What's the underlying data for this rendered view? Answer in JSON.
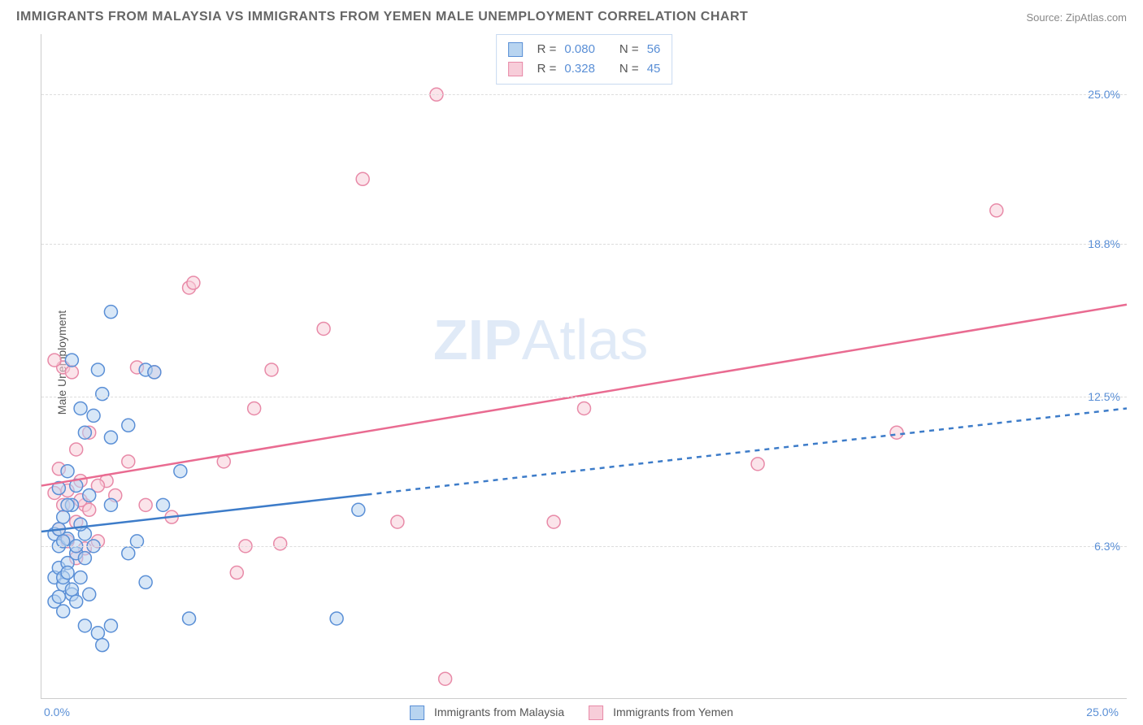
{
  "header": {
    "title": "IMMIGRANTS FROM MALAYSIA VS IMMIGRANTS FROM YEMEN MALE UNEMPLOYMENT CORRELATION CHART",
    "source": "Source: ZipAtlas.com"
  },
  "watermark": {
    "zip": "ZIP",
    "atlas": "Atlas"
  },
  "ylabel": "Male Unemployment",
  "axes": {
    "xlim": [
      0,
      25
    ],
    "ylim": [
      0,
      27.5
    ],
    "x_tick_left": "0.0%",
    "x_tick_right": "25.0%",
    "y_ticks": [
      {
        "v": 6.3,
        "label": "6.3%"
      },
      {
        "v": 12.5,
        "label": "12.5%"
      },
      {
        "v": 18.8,
        "label": "18.8%"
      },
      {
        "v": 25.0,
        "label": "25.0%"
      }
    ],
    "grid_color": "#dddddd"
  },
  "stats_legend": {
    "rows": [
      {
        "swatch_fill": "#b8d4f0",
        "swatch_border": "#5a8fd6",
        "r_label": "R =",
        "r_val": "0.080",
        "n_label": "N =",
        "n_val": "56"
      },
      {
        "swatch_fill": "#f7cdd9",
        "swatch_border": "#e88aa8",
        "r_label": "R =",
        "r_val": "0.328",
        "n_label": "N =",
        "n_val": "45"
      }
    ]
  },
  "series_legend": {
    "items": [
      {
        "label": "Immigrants from Malaysia",
        "fill": "#b8d4f0",
        "border": "#5a8fd6"
      },
      {
        "label": "Immigrants from Yemen",
        "fill": "#f7cdd9",
        "border": "#e88aa8"
      }
    ]
  },
  "series": {
    "malaysia": {
      "color_fill": "#b8d4f0",
      "color_stroke": "#5a8fd6",
      "marker_radius": 8,
      "trend": {
        "x1": 0,
        "y1": 6.9,
        "x2": 25,
        "y2": 12.0,
        "solid_until_x": 7.5,
        "stroke": "#3d7cc9",
        "width": 2.5
      },
      "points": [
        [
          0.3,
          5.0
        ],
        [
          0.4,
          5.4
        ],
        [
          0.5,
          4.7
        ],
        [
          0.6,
          5.6
        ],
        [
          0.7,
          4.3
        ],
        [
          0.8,
          6.0
        ],
        [
          0.9,
          5.0
        ],
        [
          1.0,
          5.8
        ],
        [
          0.4,
          6.3
        ],
        [
          0.6,
          6.6
        ],
        [
          0.8,
          6.3
        ],
        [
          1.0,
          6.8
        ],
        [
          1.2,
          6.3
        ],
        [
          0.5,
          7.5
        ],
        [
          0.7,
          8.0
        ],
        [
          0.9,
          7.2
        ],
        [
          1.1,
          8.4
        ],
        [
          0.4,
          8.7
        ],
        [
          0.6,
          9.4
        ],
        [
          1.6,
          8.0
        ],
        [
          0.3,
          4.0
        ],
        [
          0.5,
          3.6
        ],
        [
          1.0,
          3.0
        ],
        [
          1.3,
          2.7
        ],
        [
          1.6,
          3.0
        ],
        [
          1.4,
          2.2
        ],
        [
          2.0,
          6.0
        ],
        [
          2.2,
          6.5
        ],
        [
          2.4,
          4.8
        ],
        [
          2.8,
          8.0
        ],
        [
          3.4,
          3.3
        ],
        [
          3.2,
          9.4
        ],
        [
          1.0,
          11.0
        ],
        [
          1.2,
          11.7
        ],
        [
          1.6,
          10.8
        ],
        [
          1.6,
          16.0
        ],
        [
          0.7,
          14.0
        ],
        [
          1.4,
          12.6
        ],
        [
          0.9,
          12.0
        ],
        [
          1.3,
          13.6
        ],
        [
          2.0,
          11.3
        ],
        [
          0.3,
          6.8
        ],
        [
          0.5,
          5.0
        ],
        [
          0.7,
          4.5
        ],
        [
          0.6,
          5.2
        ],
        [
          0.4,
          4.2
        ],
        [
          0.5,
          6.5
        ],
        [
          0.8,
          4.0
        ],
        [
          1.1,
          4.3
        ],
        [
          0.6,
          8.0
        ],
        [
          2.4,
          13.6
        ],
        [
          6.8,
          3.3
        ],
        [
          0.8,
          8.8
        ],
        [
          0.4,
          7.0
        ],
        [
          7.3,
          7.8
        ],
        [
          2.6,
          13.5
        ]
      ]
    },
    "yemen": {
      "color_fill": "#f7cdd9",
      "color_stroke": "#e88aa8",
      "marker_radius": 8,
      "trend": {
        "x1": 0,
        "y1": 8.8,
        "x2": 25,
        "y2": 16.3,
        "solid_until_x": 25,
        "stroke": "#e96b91",
        "width": 2.5
      },
      "points": [
        [
          0.4,
          7.0
        ],
        [
          0.5,
          8.0
        ],
        [
          0.6,
          8.6
        ],
        [
          0.8,
          7.3
        ],
        [
          0.9,
          9.0
        ],
        [
          1.0,
          8.0
        ],
        [
          0.5,
          13.7
        ],
        [
          0.3,
          14.0
        ],
        [
          0.7,
          13.5
        ],
        [
          1.1,
          7.8
        ],
        [
          1.3,
          6.5
        ],
        [
          1.5,
          9.0
        ],
        [
          2.0,
          9.8
        ],
        [
          2.2,
          13.7
        ],
        [
          2.6,
          13.5
        ],
        [
          3.0,
          7.5
        ],
        [
          3.4,
          17.0
        ],
        [
          3.5,
          17.2
        ],
        [
          4.2,
          9.8
        ],
        [
          4.5,
          5.2
        ],
        [
          4.7,
          6.3
        ],
        [
          4.9,
          12.0
        ],
        [
          5.3,
          13.6
        ],
        [
          5.5,
          6.4
        ],
        [
          6.5,
          15.3
        ],
        [
          7.4,
          21.5
        ],
        [
          8.2,
          7.3
        ],
        [
          9.1,
          25.0
        ],
        [
          9.3,
          0.8
        ],
        [
          11.8,
          7.3
        ],
        [
          12.5,
          12.0
        ],
        [
          16.5,
          9.7
        ],
        [
          19.7,
          11.0
        ],
        [
          22.0,
          20.2
        ],
        [
          0.6,
          6.5
        ],
        [
          0.8,
          5.8
        ],
        [
          1.0,
          6.2
        ],
        [
          1.7,
          8.4
        ],
        [
          2.4,
          8.0
        ],
        [
          0.9,
          8.2
        ],
        [
          1.1,
          11.0
        ],
        [
          0.3,
          8.5
        ],
        [
          0.4,
          9.5
        ],
        [
          0.8,
          10.3
        ],
        [
          1.3,
          8.8
        ]
      ]
    }
  }
}
